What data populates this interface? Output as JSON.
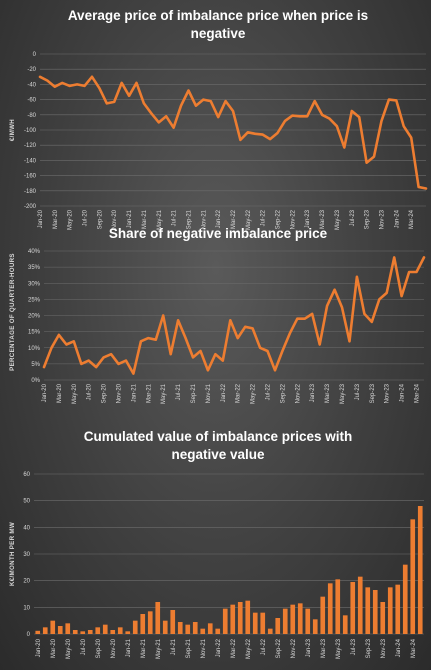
{
  "colors": {
    "series": "#ed7d31",
    "grid": "#6d6d6d",
    "text": "#d9d9d9",
    "title": "#ffffff"
  },
  "chart_data": [
    {
      "type": "line",
      "title_lines": [
        "Average price of imbalance price when price is",
        "negative"
      ],
      "xlabel": "",
      "ylabel": "€/MWH",
      "ylim": [
        -200,
        0
      ],
      "yticks": [
        0,
        -20,
        -40,
        -60,
        -80,
        -100,
        -120,
        -140,
        -160,
        -180,
        -200
      ],
      "grid": true,
      "x_tick_labels": [
        "Jan-20",
        "Mar-20",
        "May-20",
        "Jul-20",
        "Sep-20",
        "Nov-20",
        "Jan-21",
        "Mar-21",
        "May-21",
        "Jul-21",
        "Sep-21",
        "Nov-21",
        "Jan-22",
        "Mar-22",
        "May-22",
        "Jul-22",
        "Sep-22",
        "Nov-22",
        "Jan-23",
        "Mar-23",
        "May-23",
        "Jul-23",
        "Sep-23",
        "Nov-23",
        "Jan-24",
        "Mar-24"
      ],
      "series": [
        {
          "values": [
            -30,
            -35,
            -43,
            -38,
            -42,
            -40,
            -42,
            -30,
            -45,
            -65,
            -63,
            -38,
            -55,
            -38,
            -65,
            -78,
            -90,
            -82,
            -97,
            -68,
            -48,
            -68,
            -60,
            -62,
            -83,
            -62,
            -75,
            -113,
            -103,
            -105,
            -106,
            -112,
            -104,
            -88,
            -81,
            -82,
            -82,
            -62,
            -80,
            -85,
            -95,
            -123,
            -75,
            -83,
            -143,
            -135,
            -88,
            -60,
            -61,
            -95,
            -110,
            -175,
            -177
          ]
        }
      ]
    },
    {
      "type": "line",
      "title_lines": [
        "Share of negative imbalance price"
      ],
      "xlabel": "",
      "ylabel": "PERCENTAGE OF QUARTER-HOURS",
      "ylim": [
        0,
        40
      ],
      "yticks": [
        0,
        5,
        10,
        15,
        20,
        25,
        30,
        35,
        40
      ],
      "tick_suffix": "%",
      "grid": true,
      "x_tick_labels": [
        "Jan-20",
        "Mar-20",
        "May-20",
        "Jul-20",
        "Sep-20",
        "Nov-20",
        "Jan-21",
        "Mar-21",
        "May-21",
        "Jul-21",
        "Sep-21",
        "Nov-21",
        "Jan-22",
        "Mar-22",
        "May-22",
        "Jul-22",
        "Sep-22",
        "Nov-22",
        "Jan-23",
        "Mar-23",
        "May-23",
        "Jul-23",
        "Sep-23",
        "Nov-23",
        "Jan-24",
        "Mar-24"
      ],
      "series": [
        {
          "values": [
            4,
            10,
            14,
            11,
            12,
            5,
            6,
            4,
            7,
            8,
            5,
            6,
            2,
            12,
            13,
            12.5,
            20,
            8,
            18.5,
            13,
            7,
            9,
            3,
            8,
            6,
            18.5,
            13,
            16.5,
            16,
            10,
            9,
            3,
            9,
            14.5,
            19,
            19,
            20.5,
            11,
            23,
            28,
            22.5,
            12,
            32,
            20.5,
            18,
            25,
            27,
            38,
            26,
            33.5,
            33.5,
            38
          ]
        }
      ]
    },
    {
      "type": "bar",
      "title_lines": [
        "Cumulated value of imbalance prices with",
        "negative value"
      ],
      "xlabel": "",
      "ylabel": "K€/MONTH PER MW",
      "ylim": [
        0,
        60
      ],
      "yticks": [
        0,
        10,
        20,
        30,
        40,
        50,
        60
      ],
      "grid": true,
      "x_tick_labels": [
        "Jan-20",
        "Mar-20",
        "May-20",
        "Jul-20",
        "Sep-20",
        "Nov-20",
        "Jan-21",
        "Mar-21",
        "May-21",
        "Jul-21",
        "Sep-21",
        "Nov-21",
        "Jan-22",
        "Mar-22",
        "May-22",
        "Jul-22",
        "Sep-22",
        "Nov-22",
        "Jan-23",
        "Mar-23",
        "May-23",
        "Jul-23",
        "Sep-23",
        "Nov-23",
        "Jan-24",
        "Mar-24"
      ],
      "series": [
        {
          "values": [
            1.2,
            2.5,
            5,
            3,
            4,
            1.5,
            1,
            1.5,
            2.5,
            3.5,
            1.5,
            2.5,
            1,
            5,
            7.5,
            8.5,
            12,
            5,
            9,
            4.5,
            3.5,
            4.5,
            2,
            4,
            2,
            9.5,
            11,
            12,
            12.5,
            8,
            8,
            2,
            6,
            9.5,
            11,
            11.5,
            9.5,
            5.5,
            14,
            19,
            20.5,
            7,
            19.5,
            21.5,
            17.5,
            16.5,
            12,
            17.5,
            18.5,
            26,
            43,
            48
          ]
        }
      ]
    }
  ]
}
